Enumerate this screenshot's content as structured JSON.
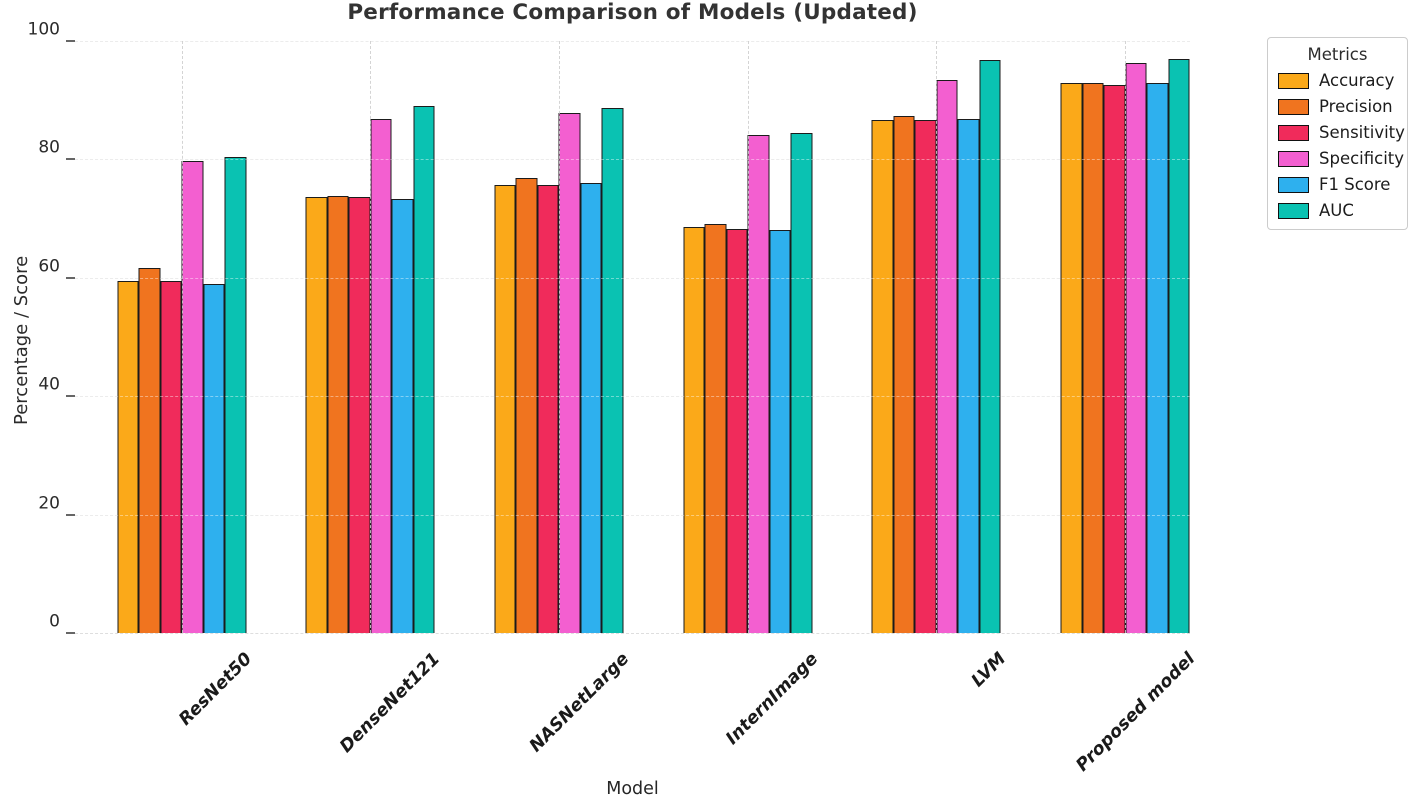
{
  "chart_data": {
    "type": "bar",
    "title": "Performance Comparison of Models (Updated)",
    "xlabel": "Model",
    "ylabel": "Percentage / Score",
    "legend_title": "Metrics",
    "legend_position": "upper right, outside plot",
    "grid": "dashed horizontal gridlines at y ticks, dashed vertical gridlines at category centers",
    "ylim": [
      0,
      100
    ],
    "y_ticks": [
      0,
      20,
      40,
      60,
      80,
      100
    ],
    "categories": [
      "ResNet50",
      "DenseNet121",
      "NASNetLarge",
      "InternImage",
      "LVM",
      "Proposed model"
    ],
    "series": [
      {
        "name": "Accuracy",
        "color": "#FBA919",
        "values": [
          59.5,
          73.7,
          75.7,
          68.5,
          86.7,
          92.9
        ]
      },
      {
        "name": "Precision",
        "color": "#F0741F",
        "values": [
          61.7,
          73.9,
          76.9,
          69.1,
          87.4,
          92.9
        ]
      },
      {
        "name": "Sensitivity",
        "color": "#F02B5B",
        "values": [
          59.4,
          73.7,
          75.6,
          68.3,
          86.7,
          92.5
        ]
      },
      {
        "name": "Specificity",
        "color": "#F35FD0",
        "values": [
          79.7,
          86.8,
          87.9,
          84.2,
          93.4,
          96.3
        ]
      },
      {
        "name": "F1 Score",
        "color": "#2EB0EE",
        "values": [
          58.9,
          73.3,
          76.0,
          68.0,
          86.9,
          92.9
        ]
      },
      {
        "name": "AUC",
        "color": "#0AC2B2",
        "values": [
          80.4,
          89.0,
          88.7,
          84.5,
          96.8,
          96.9
        ]
      }
    ],
    "style": {
      "bar_edge_color": "#1b1b1b",
      "gridline_color": "#dedede",
      "title_color": "#333333",
      "tick_label_color": "#2b2b2b",
      "x_tick_style": "bold italic, rotated 45 degrees"
    }
  }
}
